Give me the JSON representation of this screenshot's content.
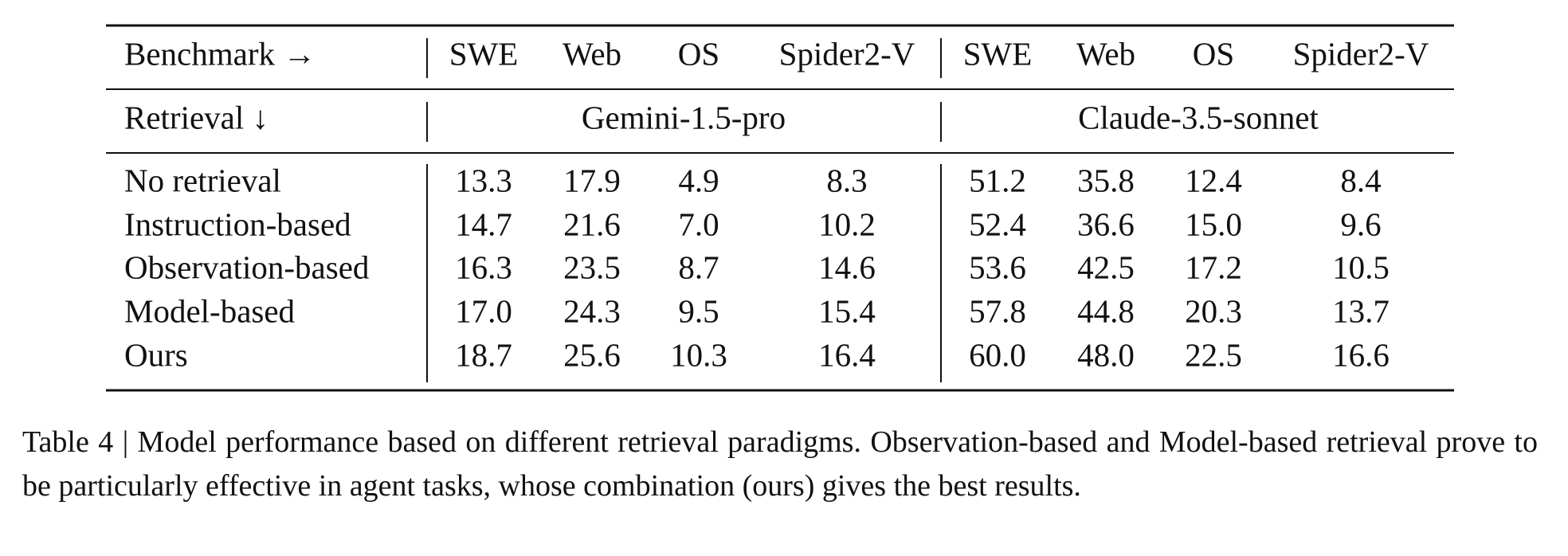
{
  "table": {
    "header": [
      "Benchmark →",
      "SWE",
      "Web",
      "OS",
      "Spider2-V",
      "SWE",
      "Web",
      "OS",
      "Spider2-V"
    ],
    "subheader": {
      "label": "Retrieval ↓",
      "groups": [
        "Gemini-1.5-pro",
        "Claude-3.5-sonnet"
      ]
    },
    "rows": [
      [
        "No retrieval",
        "13.3",
        "17.9",
        "4.9",
        "8.3",
        "51.2",
        "35.8",
        "12.4",
        "8.4"
      ],
      [
        "Instruction-based",
        "14.7",
        "21.6",
        "7.0",
        "10.2",
        "52.4",
        "36.6",
        "15.0",
        "9.6"
      ],
      [
        "Observation-based",
        "16.3",
        "23.5",
        "8.7",
        "14.6",
        "53.6",
        "42.5",
        "17.2",
        "10.5"
      ],
      [
        "Model-based",
        "17.0",
        "24.3",
        "9.5",
        "15.4",
        "57.8",
        "44.8",
        "20.3",
        "13.7"
      ],
      [
        "Ours",
        "18.7",
        "25.6",
        "10.3",
        "16.4",
        "60.0",
        "48.0",
        "22.5",
        "16.6"
      ]
    ]
  },
  "caption": "Table 4 | Model performance based on different retrieval paradigms. Observation-based and Model-based retrieval prove to be particularly effective in agent tasks, whose combination (ours) gives the best results."
}
